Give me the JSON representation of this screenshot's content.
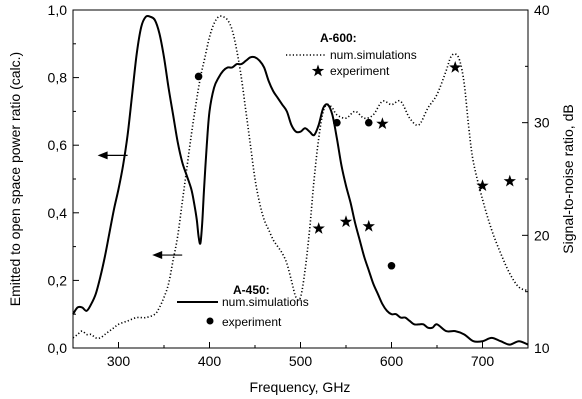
{
  "chart_data": {
    "type": "line",
    "title": "",
    "xlabel": "Frequency, GHz",
    "ylabel_left": "Emitted to open space power ratio (calc.)",
    "ylabel_right": "Signal-to-noise ratio, dB",
    "xlim": [
      250,
      750
    ],
    "ylim_left": [
      0,
      1
    ],
    "ylim_right": [
      10,
      40
    ],
    "x_ticks": [
      "300",
      "400",
      "500",
      "600",
      "700"
    ],
    "y_left_ticks": [
      "0,0",
      "0,2",
      "0,4",
      "0,6",
      "0,8",
      "1,0"
    ],
    "y_right_ticks": [
      "10",
      "20",
      "30",
      "40"
    ],
    "grid": false,
    "groups": [
      {
        "title": "A-450:",
        "sim_label": "num.simulations",
        "exp_label": "experiment"
      },
      {
        "title": "A-600:",
        "sim_label": "num.simulations",
        "exp_label": "experiment"
      }
    ],
    "series": [
      {
        "group": 0,
        "style": "solid",
        "axis": "left",
        "kind": "line",
        "x": [
          250,
          255,
          260,
          265,
          270,
          275,
          280,
          285,
          290,
          295,
          300,
          305,
          310,
          315,
          320,
          325,
          330,
          335,
          340,
          345,
          350,
          355,
          360,
          365,
          370,
          375,
          380,
          383,
          386,
          388,
          390,
          392,
          394,
          397,
          400,
          405,
          410,
          415,
          420,
          425,
          430,
          435,
          440,
          445,
          450,
          455,
          460,
          465,
          470,
          475,
          480,
          485,
          490,
          495,
          500,
          505,
          510,
          515,
          520,
          525,
          530,
          535,
          540,
          545,
          550,
          555,
          560,
          565,
          570,
          575,
          580,
          585,
          590,
          595,
          600,
          605,
          610,
          615,
          620,
          625,
          630,
          635,
          640,
          645,
          650,
          660,
          670,
          680,
          690,
          700,
          710,
          720,
          730,
          740,
          750
        ],
        "y": [
          0.1,
          0.12,
          0.12,
          0.11,
          0.13,
          0.16,
          0.21,
          0.27,
          0.34,
          0.41,
          0.47,
          0.54,
          0.63,
          0.75,
          0.87,
          0.95,
          0.98,
          0.98,
          0.97,
          0.93,
          0.86,
          0.77,
          0.69,
          0.61,
          0.55,
          0.51,
          0.47,
          0.43,
          0.38,
          0.33,
          0.31,
          0.37,
          0.47,
          0.6,
          0.7,
          0.77,
          0.8,
          0.82,
          0.83,
          0.83,
          0.84,
          0.84,
          0.85,
          0.86,
          0.86,
          0.85,
          0.83,
          0.79,
          0.76,
          0.74,
          0.72,
          0.7,
          0.66,
          0.64,
          0.64,
          0.65,
          0.64,
          0.63,
          0.66,
          0.71,
          0.72,
          0.69,
          0.62,
          0.54,
          0.48,
          0.43,
          0.37,
          0.32,
          0.27,
          0.23,
          0.19,
          0.16,
          0.13,
          0.11,
          0.1,
          0.1,
          0.09,
          0.09,
          0.08,
          0.07,
          0.07,
          0.07,
          0.06,
          0.06,
          0.07,
          0.05,
          0.05,
          0.04,
          0.02,
          0.02,
          0.03,
          0.02,
          0.01,
          0.02,
          0.01
        ]
      },
      {
        "group": 0,
        "style": "dot",
        "axis": "right",
        "kind": "scatter",
        "x": [
          388,
          540,
          575,
          600
        ],
        "y": [
          34.1,
          30.0,
          30.0,
          17.3
        ]
      },
      {
        "group": 1,
        "style": "dotted",
        "axis": "left",
        "kind": "line",
        "x": [
          250,
          255,
          260,
          265,
          270,
          275,
          280,
          285,
          290,
          295,
          300,
          310,
          320,
          330,
          340,
          345,
          350,
          355,
          360,
          365,
          370,
          375,
          380,
          385,
          390,
          395,
          400,
          405,
          410,
          415,
          420,
          425,
          430,
          435,
          440,
          445,
          450,
          455,
          460,
          465,
          470,
          475,
          480,
          485,
          490,
          495,
          500,
          505,
          510,
          515,
          520,
          525,
          530,
          535,
          540,
          550,
          560,
          570,
          580,
          590,
          600,
          610,
          620,
          630,
          640,
          650,
          660,
          665,
          670,
          675,
          680,
          685,
          690,
          700,
          710,
          720,
          730,
          740,
          750
        ],
        "y": [
          0.03,
          0.04,
          0.05,
          0.04,
          0.04,
          0.03,
          0.03,
          0.04,
          0.05,
          0.06,
          0.07,
          0.08,
          0.09,
          0.09,
          0.1,
          0.12,
          0.15,
          0.19,
          0.26,
          0.33,
          0.43,
          0.53,
          0.63,
          0.72,
          0.8,
          0.86,
          0.92,
          0.96,
          0.98,
          0.98,
          0.97,
          0.94,
          0.88,
          0.8,
          0.7,
          0.6,
          0.5,
          0.43,
          0.38,
          0.35,
          0.32,
          0.3,
          0.28,
          0.25,
          0.2,
          0.15,
          0.15,
          0.23,
          0.35,
          0.5,
          0.62,
          0.7,
          0.72,
          0.71,
          0.69,
          0.68,
          0.7,
          0.68,
          0.69,
          0.73,
          0.72,
          0.73,
          0.68,
          0.66,
          0.71,
          0.75,
          0.82,
          0.86,
          0.87,
          0.85,
          0.78,
          0.65,
          0.55,
          0.44,
          0.35,
          0.28,
          0.22,
          0.18,
          0.17
        ]
      },
      {
        "group": 1,
        "style": "star",
        "axis": "right",
        "kind": "scatter",
        "x": [
          520,
          550,
          575,
          590,
          670,
          700,
          730
        ],
        "y": [
          20.6,
          21.2,
          20.8,
          29.9,
          34.9,
          24.4,
          24.8
        ]
      }
    ],
    "annotations": [
      {
        "type": "arrow",
        "direction": "left",
        "x": 310,
        "y": 0.57,
        "points_to": "left-axis"
      },
      {
        "type": "arrow",
        "direction": "left",
        "x": 370,
        "y": 0.275,
        "points_to": "left-axis"
      }
    ]
  }
}
